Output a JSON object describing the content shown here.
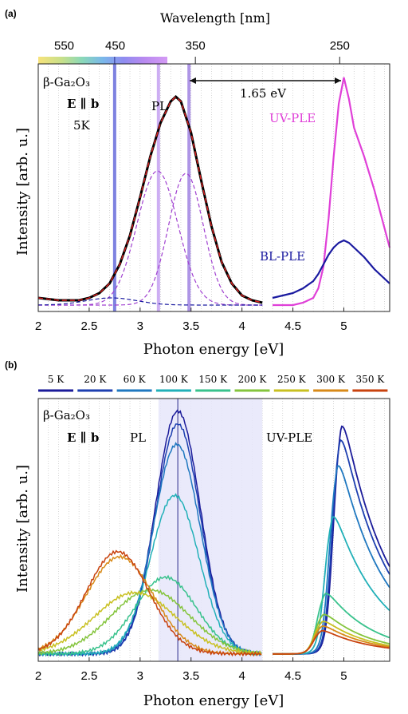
{
  "chart_data": [
    {
      "panel": "(a)",
      "type": "line",
      "xlabel": "Photon energy [eV]",
      "ylabel": "Intensity [arb. u.]",
      "top_axis_label": "Wavelength [nm]",
      "x_ticks": [
        "2",
        "2.5",
        "3",
        "3.5",
        "4",
        "4.5",
        "5"
      ],
      "top_ticks": [
        "550",
        "450",
        "350",
        "250"
      ],
      "xlim": [
        2.0,
        5.45
      ],
      "ylim": [
        0,
        1.0
      ],
      "grid": "vertical dotted",
      "annotations": {
        "material": "β-Ga₂O₃",
        "polarization": "E ∥ b",
        "temperature": "5K",
        "pl_label": "PL",
        "uvple_label": "UV-PLE",
        "blple_label": "BL-PLE",
        "shift": "1.65 eV"
      },
      "vertical_lines_eV": [
        2.75,
        3.18,
        3.48
      ],
      "series": [
        {
          "name": "PL",
          "color": "#000000",
          "x": [
            2.0,
            2.2,
            2.4,
            2.5,
            2.6,
            2.7,
            2.8,
            2.9,
            3.0,
            3.1,
            3.2,
            3.3,
            3.35,
            3.4,
            3.5,
            3.6,
            3.7,
            3.8,
            3.9,
            4.0,
            4.1,
            4.2
          ],
          "y": [
            0.03,
            0.02,
            0.02,
            0.03,
            0.05,
            0.09,
            0.17,
            0.29,
            0.45,
            0.62,
            0.76,
            0.85,
            0.87,
            0.85,
            0.72,
            0.52,
            0.33,
            0.18,
            0.09,
            0.04,
            0.02,
            0.01
          ]
        },
        {
          "name": "UV-PLE",
          "color": "#e040d8",
          "x": [
            4.3,
            4.5,
            4.6,
            4.7,
            4.75,
            4.8,
            4.85,
            4.9,
            4.95,
            5.0,
            5.05,
            5.1,
            5.2,
            5.3,
            5.4,
            5.45
          ],
          "y": [
            0.0,
            0.0,
            0.01,
            0.03,
            0.07,
            0.16,
            0.36,
            0.62,
            0.84,
            0.95,
            0.86,
            0.74,
            0.62,
            0.48,
            0.32,
            0.24
          ]
        },
        {
          "name": "BL-PLE",
          "color": "#1a1aa0",
          "x": [
            4.3,
            4.4,
            4.5,
            4.6,
            4.7,
            4.75,
            4.8,
            4.85,
            4.9,
            4.95,
            5.0,
            5.05,
            5.1,
            5.2,
            5.3,
            5.4,
            5.45
          ],
          "y": [
            0.03,
            0.04,
            0.05,
            0.07,
            0.1,
            0.13,
            0.17,
            0.21,
            0.24,
            0.26,
            0.27,
            0.26,
            0.24,
            0.2,
            0.15,
            0.11,
            0.09
          ]
        }
      ]
    },
    {
      "panel": "(b)",
      "type": "line",
      "xlabel": "Photon energy [eV]",
      "ylabel": "Intensity [arb. u.]",
      "x_ticks": [
        "2",
        "2.5",
        "3",
        "3.5",
        "4",
        "4.5",
        "5"
      ],
      "xlim": [
        2.0,
        5.45
      ],
      "ylim": [
        0,
        1.0
      ],
      "shaded_region_eV": [
        3.18,
        4.2
      ],
      "vertical_line_eV": 3.37,
      "annotations": {
        "material": "β-Ga₂O₃",
        "polarization": "E ∥ b",
        "pl_label": "PL",
        "uvple_label": "UV-PLE"
      },
      "legend_position": "top",
      "series": [
        {
          "name": "5 K",
          "color": "#1b1b9a",
          "pl_amp": 0.95,
          "pl_center": 3.37,
          "pl_sigma": 0.22,
          "ple_amp": 0.98
        },
        {
          "name": "20 K",
          "color": "#1d3fb0",
          "pl_amp": 0.9,
          "pl_center": 3.37,
          "pl_sigma": 0.22,
          "ple_amp": 0.92
        },
        {
          "name": "60 K",
          "color": "#1f78c0",
          "pl_amp": 0.82,
          "pl_center": 3.36,
          "pl_sigma": 0.23,
          "ple_amp": 0.81
        },
        {
          "name": "100 K",
          "color": "#21b0b8",
          "pl_amp": 0.62,
          "pl_center": 3.34,
          "pl_sigma": 0.24,
          "ple_amp": 0.59
        },
        {
          "name": "150 K",
          "color": "#38c28c",
          "pl_amp": 0.3,
          "pl_center": 3.25,
          "pl_sigma": 0.3,
          "ple_amp": 0.26
        },
        {
          "name": "200 K",
          "color": "#84c43c",
          "pl_amp": 0.25,
          "pl_center": 3.1,
          "pl_sigma": 0.38,
          "ple_amp": 0.17
        },
        {
          "name": "250 K",
          "color": "#c8c020",
          "pl_amp": 0.24,
          "pl_center": 2.95,
          "pl_sigma": 0.4,
          "ple_amp": 0.14
        },
        {
          "name": "300 K",
          "color": "#d88a18",
          "pl_amp": 0.38,
          "pl_center": 2.8,
          "pl_sigma": 0.33,
          "ple_amp": 0.12
        },
        {
          "name": "350 K",
          "color": "#c8420e",
          "pl_amp": 0.4,
          "pl_center": 2.78,
          "pl_sigma": 0.31,
          "ple_amp": 0.1
        }
      ]
    }
  ]
}
